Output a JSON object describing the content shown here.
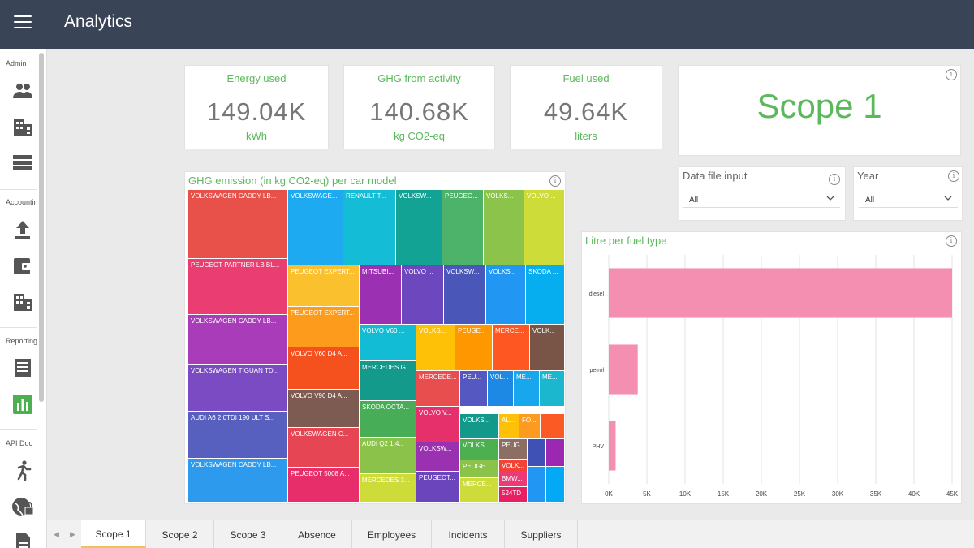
{
  "app": {
    "title": "Analytics"
  },
  "rail": {
    "sections": [
      "Admin",
      "Accounting",
      "Reporting",
      "API Doc"
    ],
    "icons": [
      "people-icon",
      "building-icon",
      "list-icon",
      "upload-icon",
      "wallet-icon",
      "building-icon",
      "document-icon",
      "bar-chart-icon",
      "running-person-icon",
      "globe-lock-icon",
      "file-icon"
    ]
  },
  "kpis": [
    {
      "title": "Energy used",
      "value": "149.04K",
      "unit": "kWh"
    },
    {
      "title": "GHG from activity",
      "value": "140.68K",
      "unit": "kg CO2-eq"
    },
    {
      "title": "Fuel used",
      "value": "49.64K",
      "unit": "liters"
    }
  ],
  "scope_card": {
    "label": "Scope 1"
  },
  "info_glyph": "i",
  "filters": {
    "data_file": {
      "label": "Data file input",
      "value": "All"
    },
    "year": {
      "label": "Year",
      "value": "All"
    }
  },
  "treemap": {
    "title": "GHG emission (in kg CO2-eq) per car model",
    "cells": [
      {
        "label": "VOLKSWAGEN CADDY LB...",
        "color": "#e8504a"
      },
      {
        "label": "PEUGEOT PARTNER LB BL...",
        "color": "#ea3e72"
      },
      {
        "label": "VOLKSWAGEN CADDY LB...",
        "color": "#a93cb8"
      },
      {
        "label": "VOLKSWAGEN TIGUAN TD...",
        "color": "#7b4bc4"
      },
      {
        "label": "AUDI A6 2,0TDI 190 ULT S...",
        "color": "#5760bf"
      },
      {
        "label": "VOLKSWAGEN CADDY LB...",
        "color": "#2e9aed"
      },
      {
        "label": "VOLKSWAGE...",
        "color": "#1eaaf1"
      },
      {
        "label": "RENAULT T...",
        "color": "#15bcd6"
      },
      {
        "label": "VOLKSW...",
        "color": "#12a394"
      },
      {
        "label": "PEUGEO...",
        "color": "#4db36a"
      },
      {
        "label": "VOLKS...",
        "color": "#8cc34a"
      },
      {
        "label": "VOLVO ...",
        "color": "#cddc39"
      },
      {
        "label": "PEUGEOT EXPERT...",
        "color": "#fbc02d"
      },
      {
        "label": "PEUGEOT EXPERT...",
        "color": "#fd9b1c"
      },
      {
        "label": "VOLVO V60 D4 A...",
        "color": "#f4511e"
      },
      {
        "label": "VOLVO V90 D4 A...",
        "color": "#7d5a52"
      },
      {
        "label": "VOLKSWAGEN C...",
        "color": "#e64553"
      },
      {
        "label": "PEUGEOT 5008 A...",
        "color": "#e72d6a"
      },
      {
        "label": "MITSUBI...",
        "color": "#9c30b2"
      },
      {
        "label": "VOLVO ...",
        "color": "#6c47be"
      },
      {
        "label": "VOLKSW...",
        "color": "#4a57b8"
      },
      {
        "label": "VOLKS...",
        "color": "#2196f3"
      },
      {
        "label": "SKODA ...",
        "color": "#06aef0"
      },
      {
        "label": "VOLVO V60 ...",
        "color": "#11bcd4"
      },
      {
        "label": "MERCEDES G...",
        "color": "#139a8b"
      },
      {
        "label": "SKODA OCTA...",
        "color": "#47ad57"
      },
      {
        "label": "AUDI Q2 1,4...",
        "color": "#8bc34a"
      },
      {
        "label": "MERCEDES 1...",
        "color": "#cddc39"
      },
      {
        "label": "VOLKS...",
        "color": "#ffc107"
      },
      {
        "label": "PEUGE...",
        "color": "#ff9800"
      },
      {
        "label": "MERCE...",
        "color": "#ff5722"
      },
      {
        "label": "VOLK...",
        "color": "#795548"
      },
      {
        "label": "MERCEDE...",
        "color": "#e84e4e"
      },
      {
        "label": "PEU...",
        "color": "#5558c0"
      },
      {
        "label": "VOL...",
        "color": "#1e88e5"
      },
      {
        "label": "ME...",
        "color": "#18a6ec"
      },
      {
        "label": "ME...",
        "color": "#1ab7cf"
      },
      {
        "label": "VOLVO V...",
        "color": "#e5306b"
      },
      {
        "label": "VOLKS...",
        "color": "#13998a"
      },
      {
        "label": "AL...",
        "color": "#ffc107"
      },
      {
        "label": "FO...",
        "color": "#fd9a20"
      },
      {
        "label": "",
        "color": "#fb5a24"
      },
      {
        "label": "VOLKSW...",
        "color": "#9a31b0"
      },
      {
        "label": "VOLKS...",
        "color": "#4caf50"
      },
      {
        "label": "PEUGE...",
        "color": "#8bc34a"
      },
      {
        "label": "MERCE...",
        "color": "#cddc39"
      },
      {
        "label": "PEUGEOT...",
        "color": "#6a45bc"
      },
      {
        "label": "PEUG...",
        "color": "#8d6e63"
      },
      {
        "label": "VOLK...",
        "color": "#f44336"
      },
      {
        "label": "BMW...",
        "color": "#ec3a76"
      },
      {
        "label": "524TD",
        "color": "#e91e63"
      },
      {
        "label": "",
        "color": "#3f51b5"
      },
      {
        "label": "",
        "color": "#9c27b0"
      },
      {
        "label": "",
        "color": "#2196f3"
      },
      {
        "label": "",
        "color": "#03a9f4"
      }
    ]
  },
  "chart_data": {
    "type": "bar",
    "orientation": "horizontal",
    "title": "Litre per fuel type",
    "categories": [
      "diesel",
      "petrol",
      "PHV"
    ],
    "values": [
      45000,
      3800,
      900
    ],
    "xlim": [
      0,
      45000
    ],
    "xticks": [
      "0K",
      "5K",
      "10K",
      "15K",
      "20K",
      "25K",
      "30K",
      "35K",
      "40K",
      "45K"
    ],
    "bar_color": "#f48fb1",
    "grid": true
  },
  "tabs": [
    {
      "label": "Scope 1",
      "active": true
    },
    {
      "label": "Scope 2",
      "active": false
    },
    {
      "label": "Scope 3",
      "active": false
    },
    {
      "label": "Absence",
      "active": false
    },
    {
      "label": "Employees",
      "active": false
    },
    {
      "label": "Incidents",
      "active": false
    },
    {
      "label": "Suppliers",
      "active": false
    }
  ]
}
